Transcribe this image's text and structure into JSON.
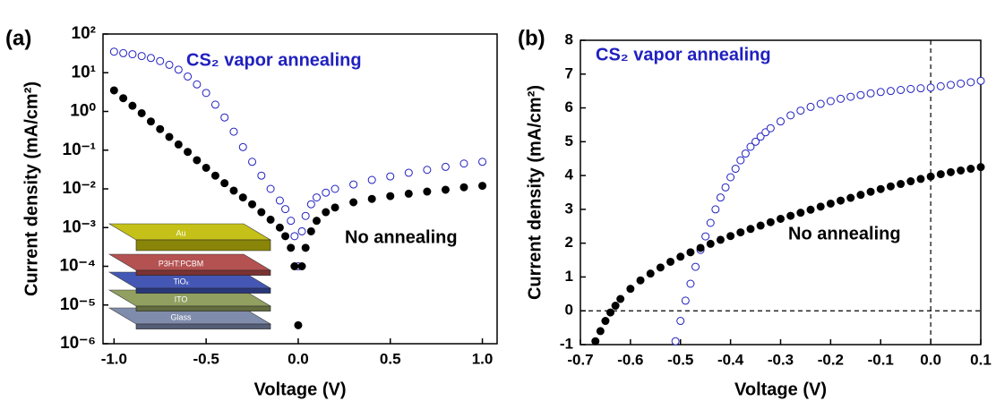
{
  "chart_data": [
    {
      "type": "scatter",
      "panel_label": "(a)",
      "xlabel": "Voltage (V)",
      "ylabel": "Current density (mA/cm²)",
      "log_y": true,
      "xlim": [
        -1.06,
        1.08
      ],
      "ylim": [
        1e-06,
        100
      ],
      "xticks": [
        {
          "value": -1,
          "label": "-1.0"
        },
        {
          "value": -0.5,
          "label": "-0.5"
        },
        {
          "value": 0,
          "label": "0.0"
        },
        {
          "value": 0.5,
          "label": "0.5"
        },
        {
          "value": 1,
          "label": "1.0"
        }
      ],
      "yticks": [
        {
          "value": 1e-06,
          "label": "10⁻⁶"
        },
        {
          "value": 1e-05,
          "label": "10⁻⁵"
        },
        {
          "value": 0.0001,
          "label": "10⁻⁴"
        },
        {
          "value": 0.001,
          "label": "10⁻³"
        },
        {
          "value": 0.01,
          "label": "10⁻²"
        },
        {
          "value": 0.1,
          "label": "10⁻¹"
        },
        {
          "value": 1,
          "label": "10⁰"
        },
        {
          "value": 10,
          "label": "10¹"
        },
        {
          "value": 100,
          "label": "10²"
        }
      ],
      "series": [
        {
          "name": "CS₂ vapor annealing",
          "color": "#2020c0",
          "marker": "open",
          "x": [
            -1,
            -0.95,
            -0.9,
            -0.85,
            -0.8,
            -0.75,
            -0.7,
            -0.65,
            -0.6,
            -0.55,
            -0.5,
            -0.45,
            -0.4,
            -0.35,
            -0.3,
            -0.25,
            -0.2,
            -0.15,
            -0.1,
            -0.07,
            -0.04,
            -0.02,
            0,
            0.02,
            0.04,
            0.07,
            0.1,
            0.15,
            0.2,
            0.3,
            0.4,
            0.5,
            0.6,
            0.7,
            0.8,
            0.9,
            1
          ],
          "values": [
            35,
            32,
            30,
            27,
            24,
            20,
            16,
            12,
            8,
            5,
            3,
            1.5,
            0.7,
            0.3,
            0.12,
            0.05,
            0.022,
            0.01,
            0.005,
            0.003,
            0.0015,
            0.0006,
            0.0001,
            0.0008,
            0.002,
            0.004,
            0.006,
            0.008,
            0.01,
            0.013,
            0.017,
            0.021,
            0.026,
            0.031,
            0.037,
            0.045,
            0.05
          ]
        },
        {
          "name": "No annealing",
          "color": "#000000",
          "marker": "filled",
          "x": [
            -1,
            -0.95,
            -0.9,
            -0.85,
            -0.8,
            -0.75,
            -0.7,
            -0.65,
            -0.6,
            -0.55,
            -0.5,
            -0.45,
            -0.4,
            -0.35,
            -0.3,
            -0.25,
            -0.2,
            -0.15,
            -0.1,
            -0.07,
            -0.04,
            -0.02,
            0,
            0.02,
            0.04,
            0.07,
            0.1,
            0.15,
            0.2,
            0.3,
            0.4,
            0.5,
            0.6,
            0.7,
            0.8,
            0.9,
            1
          ],
          "values": [
            3.5,
            2.2,
            1.4,
            0.9,
            0.55,
            0.35,
            0.22,
            0.14,
            0.09,
            0.055,
            0.035,
            0.022,
            0.014,
            0.009,
            0.006,
            0.004,
            0.0025,
            0.0016,
            0.001,
            0.0006,
            0.0003,
            0.0001,
            3e-06,
            0.0001,
            0.0003,
            0.0008,
            0.0015,
            0.0025,
            0.0033,
            0.0045,
            0.0055,
            0.0065,
            0.0075,
            0.0085,
            0.0095,
            0.011,
            0.012
          ]
        }
      ],
      "inset_layers": [
        {
          "label": "Au",
          "color": "#c2be0c"
        },
        {
          "label": "P3HT:PCBM",
          "color": "#b04848"
        },
        {
          "label": "TiOₓ",
          "color": "#3a4fb0"
        },
        {
          "label": "ITO",
          "color": "#8c9a58"
        },
        {
          "label": "Glass",
          "color": "#7a86a8"
        }
      ]
    },
    {
      "type": "scatter",
      "panel_label": "(b)",
      "xlabel": "Voltage (V)",
      "ylabel": "Current density (mA/cm²)",
      "log_y": false,
      "xlim": [
        -0.7,
        0.1
      ],
      "ylim": [
        -1,
        8
      ],
      "xticks": [
        -0.7,
        -0.6,
        -0.5,
        -0.4,
        -0.3,
        -0.2,
        -0.1,
        {
          "value": 0,
          "label": "0.0"
        },
        0.1
      ],
      "yticks": [
        -1,
        0,
        1,
        2,
        3,
        4,
        5,
        6,
        7,
        8
      ],
      "vline": 0,
      "hline": 0,
      "series": [
        {
          "name": "CS₂ vapor annealing",
          "color": "#2020c0",
          "marker": "open",
          "x": [
            -0.51,
            -0.5,
            -0.49,
            -0.48,
            -0.47,
            -0.46,
            -0.45,
            -0.44,
            -0.43,
            -0.42,
            -0.41,
            -0.4,
            -0.39,
            -0.38,
            -0.37,
            -0.36,
            -0.35,
            -0.34,
            -0.33,
            -0.32,
            -0.3,
            -0.28,
            -0.26,
            -0.24,
            -0.22,
            -0.2,
            -0.18,
            -0.16,
            -0.14,
            -0.12,
            -0.1,
            -0.08,
            -0.06,
            -0.04,
            -0.02,
            0,
            0.02,
            0.04,
            0.06,
            0.08,
            0.1
          ],
          "values": [
            -0.9,
            -0.3,
            0.3,
            0.8,
            1.3,
            1.8,
            2.2,
            2.6,
            3.0,
            3.35,
            3.65,
            3.95,
            4.2,
            4.45,
            4.65,
            4.85,
            5.0,
            5.15,
            5.28,
            5.4,
            5.6,
            5.78,
            5.92,
            6.03,
            6.12,
            6.2,
            6.27,
            6.33,
            6.38,
            6.43,
            6.47,
            6.5,
            6.53,
            6.56,
            6.58,
            6.6,
            6.64,
            6.68,
            6.72,
            6.76,
            6.8
          ]
        },
        {
          "name": "No annealing",
          "color": "#000000",
          "marker": "filled",
          "x": [
            -0.67,
            -0.66,
            -0.65,
            -0.64,
            -0.63,
            -0.62,
            -0.6,
            -0.58,
            -0.56,
            -0.54,
            -0.52,
            -0.5,
            -0.48,
            -0.46,
            -0.44,
            -0.42,
            -0.4,
            -0.38,
            -0.36,
            -0.34,
            -0.32,
            -0.3,
            -0.28,
            -0.26,
            -0.24,
            -0.22,
            -0.2,
            -0.18,
            -0.16,
            -0.14,
            -0.12,
            -0.1,
            -0.08,
            -0.06,
            -0.04,
            -0.02,
            0,
            0.02,
            0.04,
            0.06,
            0.08,
            0.1
          ],
          "values": [
            -0.9,
            -0.6,
            -0.3,
            -0.05,
            0.15,
            0.35,
            0.65,
            0.9,
            1.1,
            1.28,
            1.45,
            1.6,
            1.73,
            1.86,
            1.98,
            2.1,
            2.21,
            2.32,
            2.42,
            2.52,
            2.62,
            2.72,
            2.81,
            2.9,
            2.99,
            3.08,
            3.17,
            3.26,
            3.34,
            3.43,
            3.52,
            3.6,
            3.68,
            3.75,
            3.83,
            3.9,
            3.97,
            4.04,
            4.1,
            4.15,
            4.2,
            4.25
          ]
        }
      ]
    }
  ]
}
